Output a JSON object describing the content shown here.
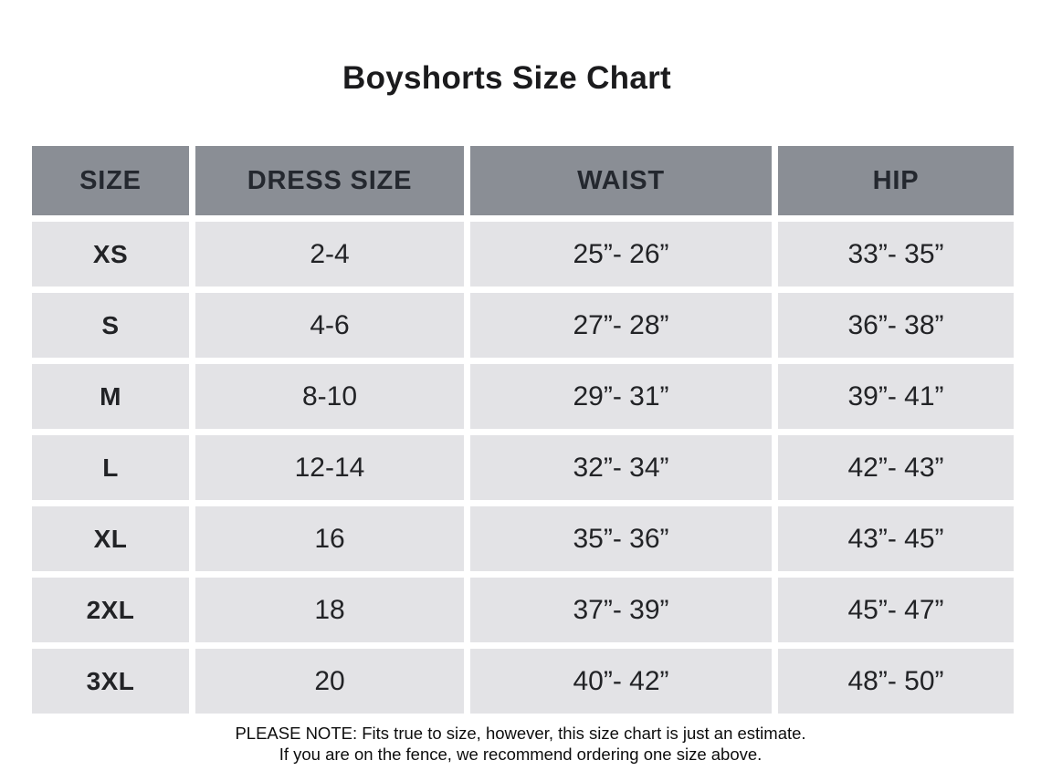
{
  "page": {
    "title": "Boyshorts Size Chart"
  },
  "table": {
    "columns": [
      "SIZE",
      "DRESS SIZE",
      "WAIST",
      "HIP"
    ],
    "rows": [
      {
        "size": "XS",
        "dress_size": "2-4",
        "waist": "25”- 26”",
        "hip": "33”- 35”"
      },
      {
        "size": "S",
        "dress_size": "4-6",
        "waist": "27”- 28”",
        "hip": "36”- 38”"
      },
      {
        "size": "M",
        "dress_size": "8-10",
        "waist": "29”- 31”",
        "hip": "39”- 41”"
      },
      {
        "size": "L",
        "dress_size": "12-14",
        "waist": "32”- 34”",
        "hip": "42”- 43”"
      },
      {
        "size": "XL",
        "dress_size": "16",
        "waist": "35”- 36”",
        "hip": "43”- 45”"
      },
      {
        "size": "2XL",
        "dress_size": "18",
        "waist": "37”- 39”",
        "hip": "45”- 47”"
      },
      {
        "size": "3XL",
        "dress_size": "20",
        "waist": "40”- 42”",
        "hip": "48”- 50”"
      }
    ],
    "colors": {
      "header_bg": "#8a8e95",
      "header_text": "#24282f",
      "row_bg": "#e3e3e6",
      "row_text": "#222326",
      "gutter": "#ffffff"
    }
  },
  "footer": {
    "line1": "PLEASE NOTE: Fits true to size, however, this size chart is just an estimate.",
    "line2": "If you are on the fence, we recommend ordering one size above."
  },
  "chart_data": {
    "type": "table",
    "title": "Boyshorts Size Chart",
    "columns": [
      "SIZE",
      "DRESS SIZE",
      "WAIST",
      "HIP"
    ],
    "rows": [
      [
        "XS",
        "2-4",
        "25”- 26”",
        "33”- 35”"
      ],
      [
        "S",
        "4-6",
        "27”- 28”",
        "36”- 38”"
      ],
      [
        "M",
        "8-10",
        "29”- 31”",
        "39”- 41”"
      ],
      [
        "L",
        "12-14",
        "32”- 34”",
        "42”- 43”"
      ],
      [
        "XL",
        "16",
        "35”- 36”",
        "43”- 45”"
      ],
      [
        "2XL",
        "18",
        "37”- 39”",
        "45”- 47”"
      ],
      [
        "3XL",
        "20",
        "40”- 42”",
        "48”- 50”"
      ]
    ],
    "notes": [
      "PLEASE NOTE: Fits true to size, however, this size chart is just an estimate.",
      "If you are on the fence, we recommend ordering one size above."
    ]
  }
}
